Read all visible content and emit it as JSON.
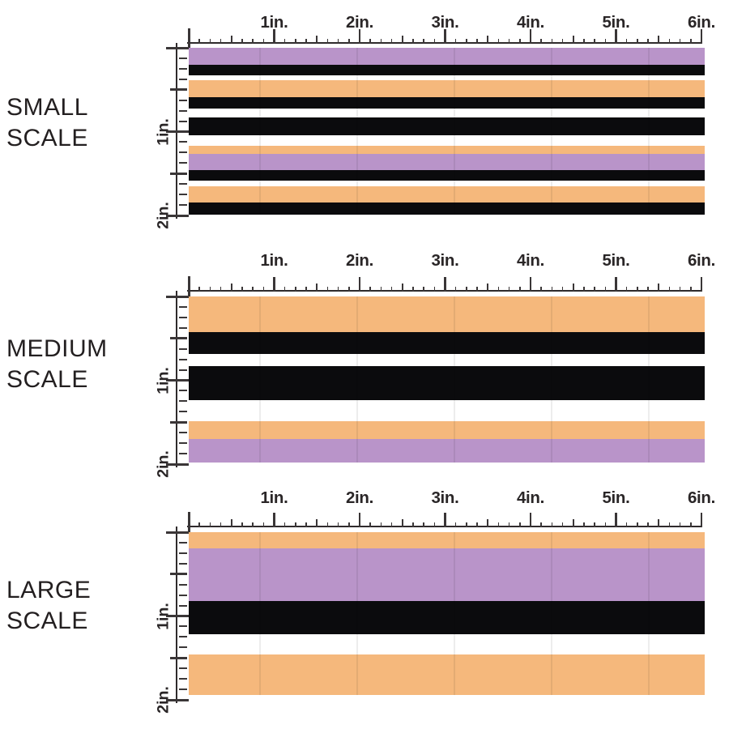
{
  "image_type": "fabric stripe pattern scale comparison",
  "colors": {
    "purple": "#b994c9",
    "orange": "#f5b87c",
    "black": "#0b0b0d",
    "white": "#ffffff",
    "ink": "#231f20",
    "ruler": "#3a3637"
  },
  "ruler": {
    "horizontal_labels": [
      "1in.",
      "2in.",
      "3in.",
      "4in.",
      "5in.",
      "6in."
    ],
    "vertical_labels": [
      "1in.",
      "2in."
    ],
    "horizontal_span_inches": 6,
    "vertical_span_inches": 2
  },
  "sections": [
    {
      "id": "small-scale",
      "label": "SMALL SCALE",
      "label_lines": [
        "SMALL",
        "SCALE"
      ],
      "stripes": [
        {
          "color": "purple",
          "height": 21
        },
        {
          "color": "black",
          "height": 13
        },
        {
          "color": "white",
          "height": 6
        },
        {
          "color": "orange",
          "height": 21
        },
        {
          "color": "black",
          "height": 14
        },
        {
          "color": "white",
          "height": 11
        },
        {
          "color": "black",
          "height": 22
        },
        {
          "color": "white",
          "height": 13
        },
        {
          "color": "orange",
          "height": 10
        },
        {
          "color": "purple",
          "height": 20
        },
        {
          "color": "black",
          "height": 13
        },
        {
          "color": "white",
          "height": 7
        },
        {
          "color": "orange",
          "height": 20
        },
        {
          "color": "black",
          "height": 15
        }
      ]
    },
    {
      "id": "medium-scale",
      "label": "MEDIUM SCALE",
      "label_lines": [
        "MEDIUM",
        "SCALE"
      ],
      "stripes": [
        {
          "color": "orange",
          "height": 44
        },
        {
          "color": "black",
          "height": 27
        },
        {
          "color": "white",
          "height": 15
        },
        {
          "color": "black",
          "height": 42
        },
        {
          "color": "white",
          "height": 26
        },
        {
          "color": "orange",
          "height": 22
        },
        {
          "color": "purple",
          "height": 29
        }
      ]
    },
    {
      "id": "large-scale",
      "label": "LARGE SCALE",
      "label_lines": [
        "LARGE",
        "SCALE"
      ],
      "stripes": [
        {
          "color": "orange",
          "height": 20
        },
        {
          "color": "purple",
          "height": 65
        },
        {
          "color": "black",
          "height": 41
        },
        {
          "color": "white",
          "height": 25
        },
        {
          "color": "orange",
          "height": 50
        }
      ]
    }
  ]
}
